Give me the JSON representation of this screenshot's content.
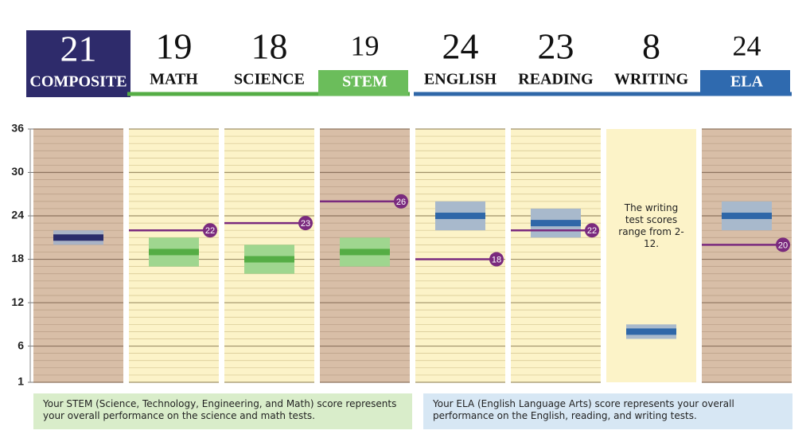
{
  "chart_data": {
    "type": "score-range",
    "categories": [
      "COMPOSITE",
      "MATH",
      "SCIENCE",
      "STEM",
      "ENGLISH",
      "READING",
      "WRITING",
      "ELA"
    ],
    "values": [
      21,
      19,
      18,
      19,
      24,
      23,
      8,
      24
    ],
    "low": [
      20,
      17,
      16,
      17,
      22,
      21,
      7,
      22
    ],
    "high": [
      22,
      21,
      20,
      21,
      26,
      25,
      9,
      26
    ],
    "benchmarks": [
      null,
      22,
      23,
      26,
      18,
      22,
      null,
      20
    ],
    "colors": [
      "#2a2c6a",
      "#55ad45",
      "#55ad45",
      "#55ad45",
      "#2f67a8",
      "#2f67a8",
      "#2f67a8",
      "#2f67a8"
    ],
    "band_colors": [
      "#a9b3c6",
      "#9fd68f",
      "#9fd68f",
      "#9fd68f",
      "#a8b9cc",
      "#a8b9cc",
      "#a8b9cc",
      "#a8b9cc"
    ],
    "column_fills": [
      "#d8bea7",
      "#fcf3c8",
      "#fcf3c8",
      "#d8bea7",
      "#fcf3c8",
      "#fcf3c8",
      "#fcf3c8",
      "#d8bea7"
    ],
    "header_fills": [
      "#2e2b6b",
      null,
      null,
      "#6bbd5b",
      null,
      null,
      null,
      "#2f6aaf"
    ],
    "header_boxes": [
      "full",
      null,
      null,
      "label",
      null,
      null,
      null,
      "label"
    ],
    "benchmark_color": "#7a2a7e",
    "column_notes": [
      null,
      null,
      null,
      null,
      null,
      null,
      "The writing test scores range from 2-12.",
      null
    ],
    "ylim": [
      1,
      36
    ],
    "yticks": [
      1,
      6,
      12,
      18,
      24,
      30,
      36
    ],
    "notes": [
      "Your STEM (Science, Technology, Engineering, and Math) score represents your overall performance on the science and math tests.",
      "Your ELA (English Language Arts) score represents your overall performance on the English, reading, and writing tests."
    ],
    "note_colors": [
      "#d9edca",
      "#d7e7f4"
    ]
  }
}
